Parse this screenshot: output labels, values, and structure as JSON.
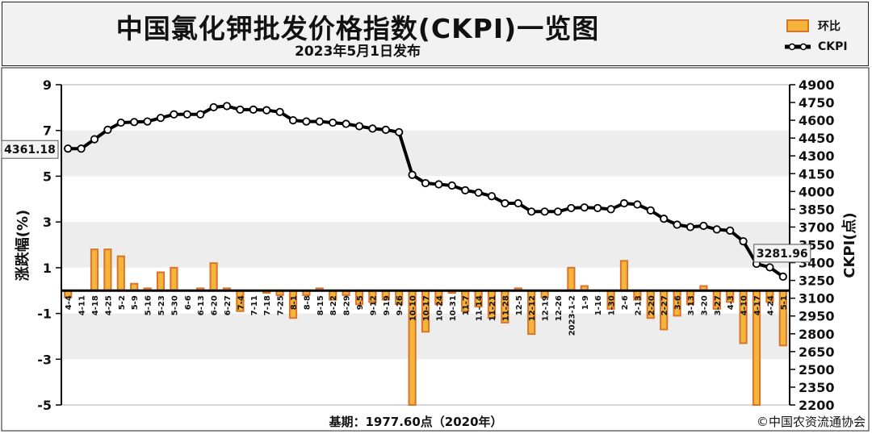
{
  "header": {
    "title": "中国氯化钾批发价格指数(CKPI)一览图",
    "subtitle": "2023年5月1日发布"
  },
  "legend": {
    "bar_label": "环比",
    "line_label": "CKPI"
  },
  "footer": {
    "base_note": "基期：1977.60点（2020年）",
    "copyright": "©中国农资流通协会"
  },
  "colors": {
    "bar_fill": "#f5b43c",
    "bar_edge": "#d9752a",
    "line": "#000000",
    "marker_fill": "#ffffff",
    "plot_band": "#ededed",
    "callout_bg": "#f4f4f4"
  },
  "chart_data": {
    "type": "bar",
    "title": "中国氯化钾批发价格指数(CKPI)一览图",
    "x": [
      "4-4",
      "4-11",
      "4-18",
      "4-25",
      "5-2",
      "5-9",
      "5-16",
      "5-23",
      "5-30",
      "6-6",
      "6-13",
      "6-20",
      "6-27",
      "7-4",
      "7-11",
      "7-18",
      "7-25",
      "8-1",
      "8-8",
      "8-15",
      "8-22",
      "8-29",
      "9-5",
      "9-12",
      "9-19",
      "9-26",
      "10-10",
      "10-17",
      "10-24",
      "10-31",
      "11-7",
      "11-14",
      "11-21",
      "11-28",
      "12-5",
      "12-12",
      "12-19",
      "12-26",
      "2023-1-2",
      "1-9",
      "1-16",
      "1-30",
      "2-6",
      "2-13",
      "2-20",
      "2-27",
      "3-6",
      "3-13",
      "3-20",
      "3-27",
      "4-3",
      "4-10",
      "4-17",
      "4-24",
      "5-1"
    ],
    "y_left": {
      "label": "涨跌幅(%)",
      "range": [
        -5,
        9
      ],
      "ticks": [
        -5,
        -3,
        -1,
        1,
        3,
        5,
        7,
        9
      ]
    },
    "y_right": {
      "label": "CKPI(点)",
      "range": [
        2200,
        4900
      ],
      "ticks": [
        2200,
        2350,
        2500,
        2650,
        2800,
        2950,
        3100,
        3250,
        3400,
        3550,
        3700,
        3850,
        4000,
        4150,
        4300,
        4450,
        4600,
        4750,
        4900
      ]
    },
    "grid": "horizontal bands",
    "series": [
      {
        "name": "环比",
        "type": "bar",
        "axis": "left",
        "values": [
          -0.3,
          0.0,
          1.8,
          1.8,
          1.5,
          0.3,
          0.1,
          0.8,
          1.0,
          0.0,
          0.1,
          1.2,
          0.1,
          -0.9,
          0.0,
          -0.1,
          -0.2,
          -1.2,
          -0.2,
          0.1,
          -0.4,
          -0.2,
          -0.6,
          -0.5,
          -0.4,
          -0.6,
          -5.0,
          -1.8,
          -0.6,
          -0.1,
          -0.9,
          -0.7,
          -1.2,
          -1.4,
          0.1,
          -1.9,
          -0.3,
          0.0,
          1.0,
          0.2,
          0.0,
          -0.8,
          1.3,
          -0.4,
          -1.2,
          -1.7,
          -1.1,
          -0.6,
          0.2,
          -0.8,
          -0.5,
          -2.3,
          -5.0,
          -0.5,
          -2.4
        ]
      },
      {
        "name": "CKPI",
        "type": "line",
        "axis": "right",
        "values": [
          4361.18,
          4361,
          4440,
          4520,
          4580,
          4585,
          4590,
          4620,
          4650,
          4650,
          4650,
          4710,
          4720,
          4690,
          4690,
          4685,
          4670,
          4600,
          4590,
          4590,
          4580,
          4570,
          4550,
          4530,
          4520,
          4500,
          4140,
          4070,
          4060,
          4050,
          4010,
          3990,
          3960,
          3900,
          3900,
          3830,
          3830,
          3830,
          3860,
          3865,
          3860,
          3850,
          3900,
          3890,
          3840,
          3770,
          3720,
          3700,
          3710,
          3680,
          3670,
          3580,
          3390,
          3360,
          3281.96
        ]
      }
    ],
    "annotations": [
      {
        "text": "4361.18",
        "point": 0
      },
      {
        "text": "3281.96",
        "point": 54
      }
    ]
  }
}
